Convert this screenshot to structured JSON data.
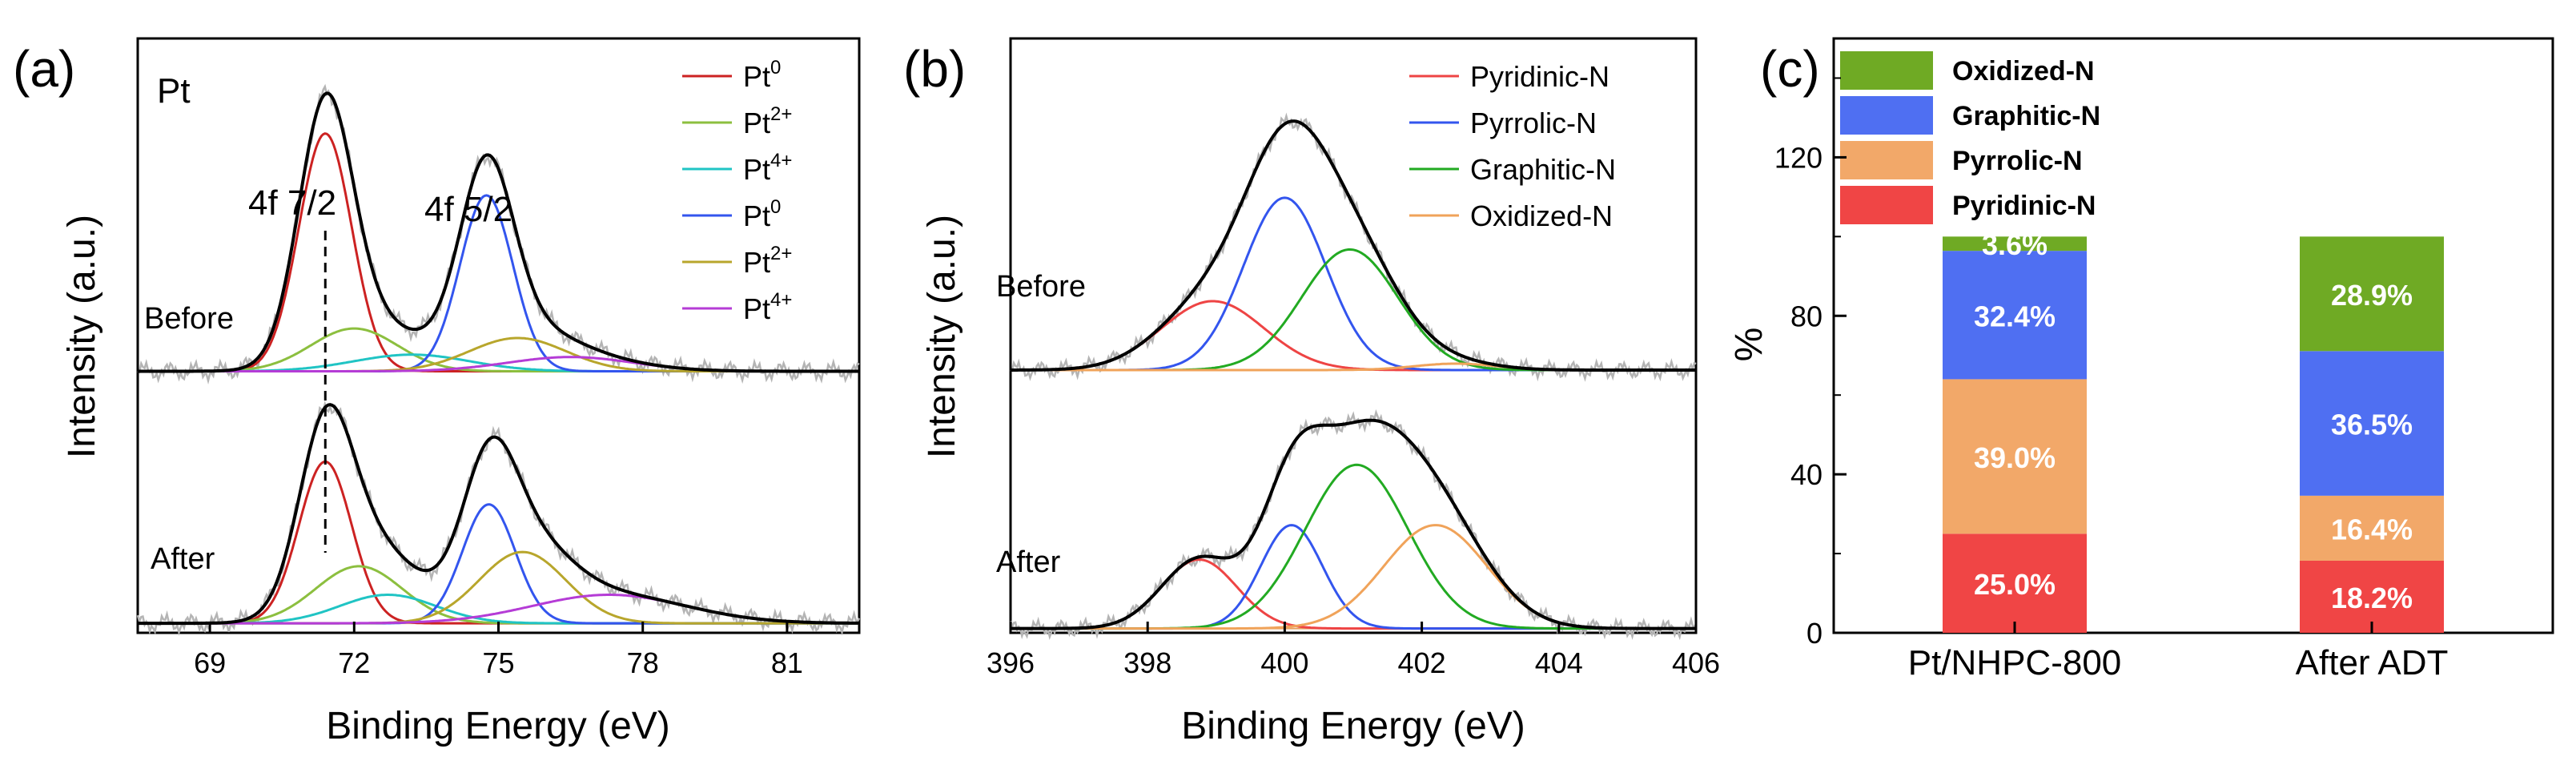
{
  "chart_data": [
    {
      "panel_label": "(a)",
      "type": "line",
      "title": "Pt",
      "xlabel": "Binding Energy (eV)",
      "ylabel": "Intensity (a.u.)",
      "xlim": [
        67.5,
        82.5
      ],
      "xticks": [
        "69",
        "72",
        "75",
        "78",
        "81"
      ],
      "annotations": [
        "4f 7/2",
        "4f 5/2"
      ],
      "sample_labels": [
        "Before",
        "After"
      ],
      "legend": [
        {
          "base": "Pt",
          "sup": "0",
          "color": "#cc2222"
        },
        {
          "base": "Pt",
          "sup": "2+",
          "color": "#8cbf3f"
        },
        {
          "base": "Pt",
          "sup": "4+",
          "color": "#20c4c4"
        },
        {
          "base": "Pt",
          "sup": "0",
          "color": "#3355ee"
        },
        {
          "base": "Pt",
          "sup": "2+",
          "color": "#b8a62c"
        },
        {
          "base": "Pt",
          "sup": "4+",
          "color": "#b53cd6"
        }
      ],
      "offsets": [
        0.53,
        0
      ],
      "baseline": 0.02,
      "ylim": [
        0,
        1.25
      ],
      "peaks": [
        [
          {
            "name": "Pt0 4f7/2",
            "center": 71.4,
            "width": 0.55,
            "height": 0.5,
            "color": "#cc2222"
          },
          {
            "name": "Pt2+ 4f7/2",
            "center": 72.0,
            "width": 0.9,
            "height": 0.09,
            "color": "#8cbf3f"
          },
          {
            "name": "Pt4+ 4f7/2",
            "center": 73.2,
            "width": 1.2,
            "height": 0.035,
            "color": "#20c4c4"
          },
          {
            "name": "Pt0 4f5/2",
            "center": 74.75,
            "width": 0.55,
            "height": 0.37,
            "color": "#3355ee"
          },
          {
            "name": "Pt2+ 4f5/2",
            "center": 75.4,
            "width": 1.0,
            "height": 0.07,
            "color": "#b8a62c"
          },
          {
            "name": "Pt4+ 4f5/2",
            "center": 76.5,
            "width": 1.3,
            "height": 0.03,
            "color": "#b53cd6"
          }
        ],
        [
          {
            "name": "Pt0 4f7/2",
            "center": 71.4,
            "width": 0.55,
            "height": 0.34,
            "color": "#cc2222"
          },
          {
            "name": "Pt2+ 4f7/2",
            "center": 72.1,
            "width": 0.9,
            "height": 0.12,
            "color": "#8cbf3f"
          },
          {
            "name": "Pt4+ 4f7/2",
            "center": 72.7,
            "width": 1.0,
            "height": 0.06,
            "color": "#20c4c4"
          },
          {
            "name": "Pt0 4f5/2",
            "center": 74.8,
            "width": 0.55,
            "height": 0.25,
            "color": "#3355ee"
          },
          {
            "name": "Pt2+ 4f5/2",
            "center": 75.5,
            "width": 0.9,
            "height": 0.15,
            "color": "#b8a62c"
          },
          {
            "name": "Pt4+ 4f5/2",
            "center": 77.3,
            "width": 1.6,
            "height": 0.06,
            "color": "#b53cd6"
          }
        ]
      ]
    },
    {
      "panel_label": "(b)",
      "type": "line",
      "xlabel": "Binding Energy (eV)",
      "ylabel": "Intensity (a.u.)",
      "xlim": [
        396,
        406
      ],
      "xticks": [
        "396",
        "398",
        "400",
        "402",
        "404",
        "406"
      ],
      "sample_labels": [
        "Before",
        "After"
      ],
      "legend": [
        {
          "base": "Pyridinic-N",
          "sup": "",
          "color": "#ee4444"
        },
        {
          "base": "Pyrrolic-N",
          "sup": "",
          "color": "#3355ee"
        },
        {
          "base": "Graphitic-N",
          "sup": "",
          "color": "#22aa22"
        },
        {
          "base": "Oxidized-N",
          "sup": "",
          "color": "#f0a35a"
        }
      ],
      "offsets": [
        0.6,
        0
      ],
      "baseline": 0.01,
      "ylim": [
        0,
        1.38
      ],
      "peaks": [
        [
          {
            "name": "Pyridinic-N",
            "center": 398.95,
            "width": 0.75,
            "height": 0.16,
            "color": "#ee4444"
          },
          {
            "name": "Pyrrolic-N",
            "center": 400.0,
            "width": 0.6,
            "height": 0.4,
            "color": "#3355ee"
          },
          {
            "name": "Graphitic-N",
            "center": 400.95,
            "width": 0.7,
            "height": 0.28,
            "color": "#22aa22"
          },
          {
            "name": "Oxidized-N",
            "center": 402.5,
            "width": 0.6,
            "height": 0.015,
            "color": "#f0a35a"
          }
        ],
        [
          {
            "name": "Pyridinic-N",
            "center": 398.75,
            "width": 0.55,
            "height": 0.16,
            "color": "#ee4444"
          },
          {
            "name": "Pyrrolic-N",
            "center": 400.1,
            "width": 0.45,
            "height": 0.24,
            "color": "#3355ee"
          },
          {
            "name": "Graphitic-N",
            "center": 401.05,
            "width": 0.75,
            "height": 0.38,
            "color": "#22aa22"
          },
          {
            "name": "Oxidized-N",
            "center": 402.2,
            "width": 0.75,
            "height": 0.24,
            "color": "#f0a35a"
          }
        ]
      ]
    },
    {
      "panel_label": "(c)",
      "type": "bar",
      "stacked": true,
      "categories": [
        "Pt/NHPC-800",
        "After ADT"
      ],
      "ylabel": "%",
      "ylim": [
        0,
        150
      ],
      "yticks": [
        0,
        40,
        80,
        120
      ],
      "series": [
        {
          "name": "Pyridinic-N",
          "color": "#f04545",
          "values": [
            25.0,
            18.2
          ],
          "labels": [
            "25.0%",
            "18.2%"
          ]
        },
        {
          "name": "Pyrrolic-N",
          "color": "#f2a869",
          "values": [
            39.0,
            16.4
          ],
          "labels": [
            "39.0%",
            "16.4%"
          ]
        },
        {
          "name": "Graphitic-N",
          "color": "#4f6ff2",
          "values": [
            32.4,
            36.5
          ],
          "labels": [
            "32.4%",
            "36.5%"
          ]
        },
        {
          "name": "Oxidized-N",
          "color": "#6faa24",
          "values": [
            3.6,
            28.9
          ],
          "labels": [
            "3.6%",
            "28.9%"
          ]
        }
      ],
      "legend_order": [
        "Oxidized-N",
        "Graphitic-N",
        "Pyrrolic-N",
        "Pyridinic-N"
      ]
    }
  ]
}
